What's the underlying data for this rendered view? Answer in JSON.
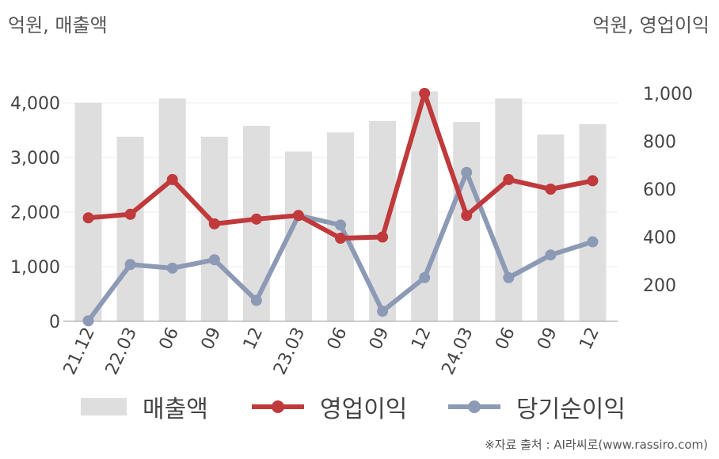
{
  "units": {
    "left": "억원, 매출액",
    "right": "억원, 영업이익"
  },
  "source": "※자료 출처 : AI라씨로(www.rassiro.com)",
  "colors": {
    "revenue": "#dedede",
    "op_income": "#c0393b",
    "net_income": "#8c9ab5",
    "axis": "#bbbbbb",
    "grid": "#eeeeee",
    "text": "#444444"
  },
  "chart_data": {
    "type": "bar",
    "categories": [
      "21.12",
      "22.03",
      "06",
      "09",
      "12",
      "23.03",
      "06",
      "09",
      "12",
      "24.03",
      "06",
      "09",
      "12"
    ],
    "series": [
      {
        "name": "매출액",
        "type": "bar",
        "axis": "left",
        "values": [
          4000,
          3380,
          4080,
          3380,
          3580,
          3110,
          3460,
          3670,
          4210,
          3650,
          4080,
          3420,
          3610
        ]
      },
      {
        "name": "영업이익",
        "type": "line",
        "axis": "right",
        "values": [
          480,
          495,
          640,
          455,
          475,
          490,
          395,
          400,
          1000,
          490,
          640,
          600,
          635
        ]
      },
      {
        "name": "당기순이익",
        "type": "line",
        "axis": "right",
        "values": [
          50,
          285,
          270,
          305,
          135,
          490,
          450,
          90,
          230,
          670,
          230,
          325,
          380
        ]
      }
    ],
    "y_left": {
      "ticks": [
        "0",
        "1,000",
        "2,000",
        "3,000",
        "4,000"
      ],
      "tick_values": [
        0,
        1000,
        2000,
        3000,
        4000
      ],
      "range": [
        0,
        4400
      ]
    },
    "y_right": {
      "ticks": [
        "200",
        "400",
        "600",
        "800",
        "1,000"
      ],
      "tick_values": [
        200,
        400,
        600,
        800,
        1000
      ],
      "range": [
        50,
        1050
      ]
    },
    "grid": true,
    "legend": "bottom"
  }
}
